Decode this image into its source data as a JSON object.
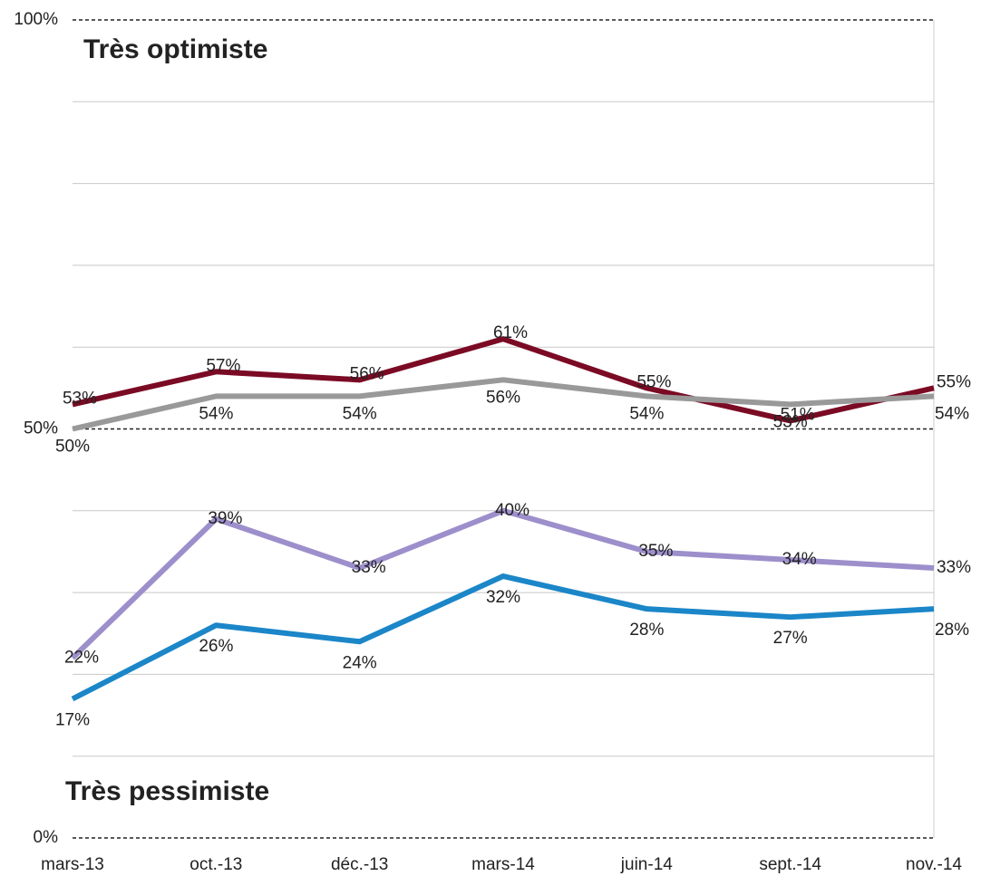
{
  "chart_data": {
    "type": "line",
    "annotations": [
      {
        "text": "Très optimiste",
        "color": "#1f9a1f"
      },
      {
        "text": "Très pessimiste",
        "color": "#7b0a24"
      }
    ],
    "categories": [
      "mars-13",
      "oct.-13",
      "déc.-13",
      "mars-14",
      "juin-14",
      "sept.-14",
      "nov.-14"
    ],
    "series": [
      {
        "color": "#7b0a24",
        "values": [
          53,
          57,
          56,
          61,
          55,
          51,
          55
        ],
        "value_labels": [
          "53%",
          "57%",
          "56%",
          "61%",
          "55%",
          "51%",
          "55%"
        ]
      },
      {
        "color": "#999999",
        "values": [
          50,
          54,
          54,
          56,
          54,
          53,
          54
        ],
        "value_labels": [
          "50%",
          "54%",
          "54%",
          "56%",
          "54%",
          "53%",
          "54%"
        ]
      },
      {
        "color": "#9d8fcb",
        "values": [
          22,
          39,
          33,
          40,
          35,
          34,
          33
        ],
        "value_labels": [
          "22%",
          "39%",
          "33%",
          "40%",
          "35%",
          "34%",
          "33%"
        ]
      },
      {
        "color": "#1b86c8",
        "values": [
          17,
          26,
          24,
          32,
          28,
          27,
          28
        ],
        "value_labels": [
          "17%",
          "26%",
          "24%",
          "32%",
          "28%",
          "27%",
          "28%"
        ]
      }
    ],
    "ylim": [
      0,
      100
    ],
    "yticks": [
      {
        "value": 0,
        "label": "0%"
      },
      {
        "value": 50,
        "label": "50%"
      },
      {
        "value": 100,
        "label": "100%"
      }
    ],
    "gridlines": [
      10,
      20,
      30,
      40,
      60,
      70,
      80,
      90
    ],
    "grid": true
  }
}
